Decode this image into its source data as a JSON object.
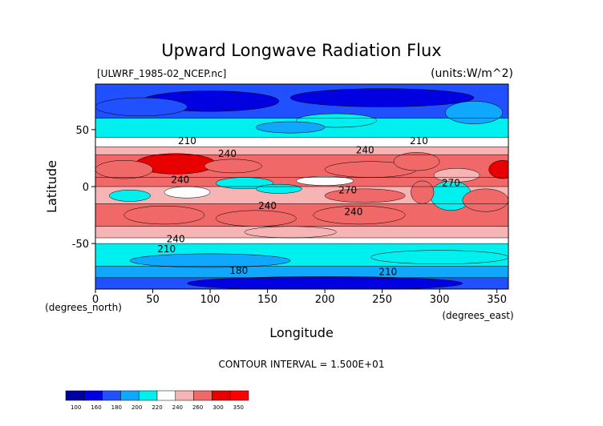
{
  "chart_data": {
    "type": "heatmap",
    "title": "Upward Longwave Radiation Flux",
    "file_label": "[ULWRF_1985-02_NCEP.nc]",
    "units_label": "(units:W/m^2)",
    "xlabel": "Longitude",
    "ylabel": "Latitude",
    "x_unit_label": "(degrees_east)",
    "y_unit_label": "(degrees_north)",
    "xlim": [
      0,
      360
    ],
    "ylim": [
      -90,
      90
    ],
    "x_ticks": [
      0,
      50,
      100,
      150,
      200,
      250,
      300,
      350
    ],
    "y_ticks": [
      50,
      0,
      -50
    ],
    "footer": "CONTOUR INTERVAL = 1.500E+01",
    "contour_interval": 15,
    "colorbar": {
      "levels": [
        100,
        160,
        180,
        200,
        220,
        240,
        260,
        300,
        350
      ],
      "colors": [
        "#0000a0",
        "#0000e0",
        "#2050ff",
        "#10a8ff",
        "#00f0f0",
        "#ffffff",
        "#f6b4b4",
        "#f06868",
        "#e80000",
        "#ff0000"
      ]
    },
    "contour_labels": [
      {
        "text": "210",
        "lon": 80,
        "lat": 40
      },
      {
        "text": "240",
        "lon": 115,
        "lat": 29
      },
      {
        "text": "240",
        "lon": 235,
        "lat": 32
      },
      {
        "text": "210",
        "lon": 282,
        "lat": 40
      },
      {
        "text": "240",
        "lon": 74,
        "lat": 6
      },
      {
        "text": "270",
        "lon": 220,
        "lat": -3
      },
      {
        "text": "270",
        "lon": 310,
        "lat": 3
      },
      {
        "text": "240",
        "lon": 150,
        "lat": -17
      },
      {
        "text": "240",
        "lon": 225,
        "lat": -22
      },
      {
        "text": "240",
        "lon": 70,
        "lat": -46
      },
      {
        "text": "210",
        "lon": 62,
        "lat": -55
      },
      {
        "text": "180",
        "lon": 125,
        "lat": -74
      },
      {
        "text": "210",
        "lon": 255,
        "lat": -75
      }
    ],
    "bands": [
      {
        "lat": [
          60,
          90
        ],
        "value": 170
      },
      {
        "lat": [
          43,
          60
        ],
        "value": 210
      },
      {
        "lat": [
          35,
          43
        ],
        "value": 225
      },
      {
        "lat": [
          28,
          35
        ],
        "value": 240
      },
      {
        "lat": [
          8,
          28
        ],
        "value": 275
      },
      {
        "lat": [
          0,
          8
        ],
        "value": 260
      },
      {
        "lat": [
          -15,
          0
        ],
        "value": 255
      },
      {
        "lat": [
          -35,
          -15
        ],
        "value": 262
      },
      {
        "lat": [
          -45,
          -35
        ],
        "value": 245
      },
      {
        "lat": [
          -50,
          -45
        ],
        "value": 232
      },
      {
        "lat": [
          -70,
          -50
        ],
        "value": 212
      },
      {
        "lat": [
          -80,
          -70
        ],
        "value": 195
      },
      {
        "lat": [
          -90,
          -80
        ],
        "value": 175
      }
    ],
    "features": [
      {
        "lon": 100,
        "lat": 75,
        "rlon": 60,
        "rlat": 9,
        "value": 150
      },
      {
        "lon": 250,
        "lat": 78,
        "rlon": 80,
        "rlat": 8,
        "value": 150
      },
      {
        "lon": 40,
        "lat": 70,
        "rlon": 40,
        "rlat": 8,
        "value": 165
      },
      {
        "lon": 330,
        "lat": 65,
        "rlon": 25,
        "rlat": 10,
        "value": 190
      },
      {
        "lon": 210,
        "lat": 58,
        "rlon": 35,
        "rlat": 6,
        "value": 205
      },
      {
        "lon": 170,
        "lat": 52,
        "rlon": 30,
        "rlat": 5,
        "value": 195
      },
      {
        "lon": 70,
        "lat": 20,
        "rlon": 35,
        "rlat": 9,
        "value": 305
      },
      {
        "lon": 25,
        "lat": 15,
        "rlon": 25,
        "rlat": 8,
        "value": 290
      },
      {
        "lon": 120,
        "lat": 18,
        "rlon": 25,
        "rlat": 6,
        "value": 280
      },
      {
        "lon": 355,
        "lat": 15,
        "rlon": 12,
        "rlat": 8,
        "value": 300
      },
      {
        "lon": 240,
        "lat": 15,
        "rlon": 40,
        "rlat": 7,
        "value": 285
      },
      {
        "lon": 280,
        "lat": 22,
        "rlon": 20,
        "rlat": 8,
        "value": 280
      },
      {
        "lon": 310,
        "lat": -8,
        "rlon": 18,
        "rlat": 13,
        "value": 205
      },
      {
        "lon": 315,
        "lat": 10,
        "rlon": 20,
        "rlat": 6,
        "value": 240
      },
      {
        "lon": 130,
        "lat": 3,
        "rlon": 25,
        "rlat": 5,
        "value": 212
      },
      {
        "lon": 160,
        "lat": -2,
        "rlon": 20,
        "rlat": 4,
        "value": 210
      },
      {
        "lon": 30,
        "lat": -8,
        "rlon": 18,
        "rlat": 5,
        "value": 215
      },
      {
        "lon": 80,
        "lat": -5,
        "rlon": 20,
        "rlat": 5,
        "value": 225
      },
      {
        "lon": 200,
        "lat": 5,
        "rlon": 25,
        "rlat": 4,
        "value": 235
      },
      {
        "lon": 235,
        "lat": -8,
        "rlon": 35,
        "rlat": 6,
        "value": 285
      },
      {
        "lon": 285,
        "lat": -5,
        "rlon": 10,
        "rlat": 10,
        "value": 275
      },
      {
        "lon": 340,
        "lat": -12,
        "rlon": 20,
        "rlat": 10,
        "value": 280
      },
      {
        "lon": 60,
        "lat": -25,
        "rlon": 35,
        "rlat": 8,
        "value": 280
      },
      {
        "lon": 140,
        "lat": -28,
        "rlon": 35,
        "rlat": 7,
        "value": 272
      },
      {
        "lon": 230,
        "lat": -25,
        "rlon": 40,
        "rlat": 8,
        "value": 262
      },
      {
        "lon": 170,
        "lat": -40,
        "rlon": 40,
        "rlat": 5,
        "value": 242
      },
      {
        "lon": 100,
        "lat": -65,
        "rlon": 70,
        "rlat": 6,
        "value": 198
      },
      {
        "lon": 300,
        "lat": -62,
        "rlon": 60,
        "rlat": 6,
        "value": 200
      },
      {
        "lon": 200,
        "lat": -85,
        "rlon": 120,
        "rlat": 6,
        "value": 150
      }
    ]
  }
}
